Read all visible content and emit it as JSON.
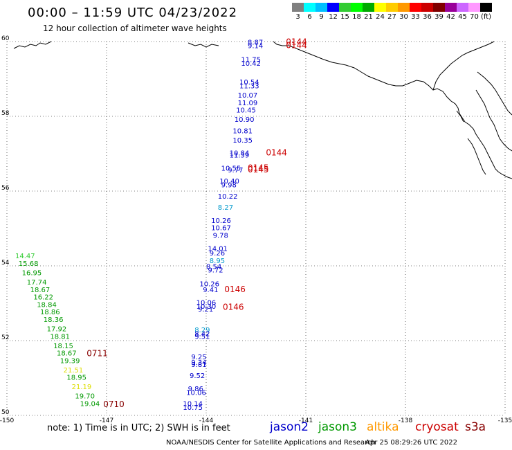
{
  "header": {
    "title": "00:00 – 11:59 UTC 04/23/2022",
    "subtitle": "12 hour collection of altimeter wave heights"
  },
  "legend": {
    "colors": [
      "#808080",
      "#00ffff",
      "#00bfff",
      "#0000ff",
      "#33cc33",
      "#00ff00",
      "#00aa00",
      "#ffff00",
      "#ffcc00",
      "#ff9900",
      "#ff0000",
      "#cc0000",
      "#800000",
      "#990099",
      "#cc66ff",
      "#ff99ff",
      "#000000"
    ],
    "labels": [
      "3",
      "6",
      "9",
      "12",
      "15",
      "18",
      "21",
      "24",
      "27",
      "30",
      "33",
      "36",
      "39",
      "42",
      "45",
      "70",
      "(ft)"
    ]
  },
  "map": {
    "lon_ticks": [
      "-150",
      "-147",
      "-144",
      "-141",
      "-138",
      "-135"
    ],
    "lat_ticks": [
      "60",
      "58",
      "56",
      "54",
      "52",
      "50"
    ],
    "observations": [
      {
        "text": "8.87",
        "lon": -142.75,
        "lat": 59.92,
        "color": "#0000cc"
      },
      {
        "text": "9.14",
        "lon": -142.75,
        "lat": 59.82,
        "color": "#0000cc"
      },
      {
        "text": "11.75",
        "lon": -142.95,
        "lat": 59.45,
        "color": "#0000cc"
      },
      {
        "text": "10.42",
        "lon": -142.95,
        "lat": 59.35,
        "color": "#0000cc"
      },
      {
        "text": "10.54",
        "lon": -143.0,
        "lat": 58.85,
        "color": "#0000cc"
      },
      {
        "text": "11.33",
        "lon": -143.0,
        "lat": 58.75,
        "color": "#0000cc"
      },
      {
        "text": "10.07",
        "lon": -143.05,
        "lat": 58.5,
        "color": "#0000cc"
      },
      {
        "text": "11.09",
        "lon": -143.05,
        "lat": 58.3,
        "color": "#0000cc"
      },
      {
        "text": "10.45",
        "lon": -143.1,
        "lat": 58.1,
        "color": "#0000cc"
      },
      {
        "text": "10.90",
        "lon": -143.15,
        "lat": 57.85,
        "color": "#0000cc"
      },
      {
        "text": "10.81",
        "lon": -143.2,
        "lat": 57.55,
        "color": "#0000cc"
      },
      {
        "text": "10.35",
        "lon": -143.2,
        "lat": 57.3,
        "color": "#0000cc"
      },
      {
        "text": "10.84",
        "lon": -143.3,
        "lat": 56.95,
        "color": "#0000cc"
      },
      {
        "text": "11.39",
        "lon": -143.3,
        "lat": 56.9,
        "color": "#0000cc"
      },
      {
        "text": "10.55",
        "lon": -143.55,
        "lat": 56.55,
        "color": "#0000cc"
      },
      {
        "text": "9.77",
        "lon": -143.35,
        "lat": 56.5,
        "color": "#0000cc"
      },
      {
        "text": "10.40",
        "lon": -143.6,
        "lat": 56.2,
        "color": "#0000cc"
      },
      {
        "text": "9.98",
        "lon": -143.55,
        "lat": 56.1,
        "color": "#0000cc"
      },
      {
        "text": "10.22",
        "lon": -143.65,
        "lat": 55.8,
        "color": "#0000cc"
      },
      {
        "text": "8.27",
        "lon": -143.65,
        "lat": 55.5,
        "color": "#0099cc"
      },
      {
        "text": "10.26",
        "lon": -143.85,
        "lat": 55.15,
        "color": "#0000cc"
      },
      {
        "text": "10.67",
        "lon": -143.85,
        "lat": 54.95,
        "color": "#0000cc"
      },
      {
        "text": "9.78",
        "lon": -143.8,
        "lat": 54.75,
        "color": "#0000cc"
      },
      {
        "text": "14.01",
        "lon": -143.95,
        "lat": 54.4,
        "color": "#0000cc"
      },
      {
        "text": "9.26",
        "lon": -143.9,
        "lat": 54.28,
        "color": "#0000cc"
      },
      {
        "text": "8.95",
        "lon": -143.9,
        "lat": 54.07,
        "color": "#0099cc"
      },
      {
        "text": "8.54",
        "lon": -144.0,
        "lat": 53.92,
        "color": "#0000cc"
      },
      {
        "text": "9.72",
        "lon": -143.95,
        "lat": 53.82,
        "color": "#0000cc"
      },
      {
        "text": "10.26",
        "lon": -144.2,
        "lat": 53.45,
        "color": "#0000cc"
      },
      {
        "text": "9.41",
        "lon": -144.1,
        "lat": 53.3,
        "color": "#0000cc"
      },
      {
        "text": "10.06",
        "lon": -144.3,
        "lat": 52.95,
        "color": "#0000cc"
      },
      {
        "text": "10.30",
        "lon": -144.3,
        "lat": 52.85,
        "color": "#0000cc"
      },
      {
        "text": "9.21",
        "lon": -144.25,
        "lat": 52.78,
        "color": "#0000cc"
      },
      {
        "text": "8.29",
        "lon": -144.35,
        "lat": 52.22,
        "color": "#0099cc"
      },
      {
        "text": "8.42",
        "lon": -144.35,
        "lat": 52.12,
        "color": "#0000cc"
      },
      {
        "text": "9.51",
        "lon": -144.35,
        "lat": 52.05,
        "color": "#0000cc"
      },
      {
        "text": "9.25",
        "lon": -144.45,
        "lat": 51.5,
        "color": "#0000cc"
      },
      {
        "text": "9.34",
        "lon": -144.45,
        "lat": 51.35,
        "color": "#0000cc"
      },
      {
        "text": "9.81",
        "lon": -144.45,
        "lat": 51.3,
        "color": "#0000cc"
      },
      {
        "text": "9.52",
        "lon": -144.5,
        "lat": 51.0,
        "color": "#0000cc"
      },
      {
        "text": "9.86",
        "lon": -144.55,
        "lat": 50.65,
        "color": "#0000cc"
      },
      {
        "text": "10.06",
        "lon": -144.6,
        "lat": 50.55,
        "color": "#0000cc"
      },
      {
        "text": "10.14",
        "lon": -144.7,
        "lat": 50.25,
        "color": "#0000cc"
      },
      {
        "text": "10.75",
        "lon": -144.7,
        "lat": 50.15,
        "color": "#0000cc"
      },
      {
        "text": "14.47",
        "lon": -149.75,
        "lat": 54.2,
        "color": "#33cc33"
      },
      {
        "text": "15.68",
        "lon": -149.65,
        "lat": 54.0,
        "color": "#009900"
      },
      {
        "text": "16.95",
        "lon": -149.55,
        "lat": 53.75,
        "color": "#009900"
      },
      {
        "text": "17.74",
        "lon": -149.4,
        "lat": 53.5,
        "color": "#009900"
      },
      {
        "text": "18.67",
        "lon": -149.3,
        "lat": 53.3,
        "color": "#009900"
      },
      {
        "text": "16.22",
        "lon": -149.2,
        "lat": 53.1,
        "color": "#009900"
      },
      {
        "text": "18.84",
        "lon": -149.1,
        "lat": 52.9,
        "color": "#009900"
      },
      {
        "text": "18.86",
        "lon": -149.0,
        "lat": 52.7,
        "color": "#009900"
      },
      {
        "text": "18.36",
        "lon": -148.9,
        "lat": 52.5,
        "color": "#009900"
      },
      {
        "text": "17.92",
        "lon": -148.8,
        "lat": 52.25,
        "color": "#009900"
      },
      {
        "text": "18.81",
        "lon": -148.7,
        "lat": 52.05,
        "color": "#009900"
      },
      {
        "text": "18.15",
        "lon": -148.6,
        "lat": 51.8,
        "color": "#009900"
      },
      {
        "text": "18.67",
        "lon": -148.5,
        "lat": 51.6,
        "color": "#009900"
      },
      {
        "text": "19.39",
        "lon": -148.4,
        "lat": 51.4,
        "color": "#009900"
      },
      {
        "text": "21.51",
        "lon": -148.3,
        "lat": 51.15,
        "color": "#dddd00"
      },
      {
        "text": "18.95",
        "lon": -148.2,
        "lat": 50.95,
        "color": "#009900"
      },
      {
        "text": "21.19",
        "lon": -148.05,
        "lat": 50.7,
        "color": "#dddd00"
      },
      {
        "text": "19.70",
        "lon": -147.95,
        "lat": 50.45,
        "color": "#009900"
      },
      {
        "text": "19.04",
        "lon": -147.8,
        "lat": 50.25,
        "color": "#009900"
      }
    ],
    "time_labels": [
      {
        "text": "0144",
        "lon": -141.6,
        "lat": 59.92,
        "color": "#cc0000"
      },
      {
        "text": "0144",
        "lon": -141.6,
        "lat": 59.82,
        "color": "#cc0000"
      },
      {
        "text": "0144",
        "lon": -142.2,
        "lat": 56.95,
        "color": "#cc0000"
      },
      {
        "text": "0145",
        "lon": -142.75,
        "lat": 56.55,
        "color": "#cc0000"
      },
      {
        "text": "0145",
        "lon": -142.75,
        "lat": 56.5,
        "color": "#cc0000"
      },
      {
        "text": "0146",
        "lon": -143.45,
        "lat": 53.3,
        "color": "#cc0000"
      },
      {
        "text": "0146",
        "lon": -143.5,
        "lat": 52.82,
        "color": "#cc0000"
      },
      {
        "text": "0711",
        "lon": -147.6,
        "lat": 51.58,
        "color": "#880000"
      },
      {
        "text": "0710",
        "lon": -147.1,
        "lat": 50.22,
        "color": "#880000"
      }
    ]
  },
  "footer": {
    "note": "note: 1) Time is in UTC; 2) SWH is in feet",
    "satellites": [
      {
        "name": "jason2",
        "color": "#0000cc"
      },
      {
        "name": "jason3",
        "color": "#009900"
      },
      {
        "name": "altika",
        "color": "#ff9900"
      },
      {
        "name": "cryosat",
        "color": "#cc0000"
      },
      {
        "name": "s3a",
        "color": "#880000"
      }
    ],
    "credits": "NOAA/NESDIS Center for Satellite Applications and Research",
    "timestamp": "Apr 25 08:29:26 UTC 2022"
  }
}
